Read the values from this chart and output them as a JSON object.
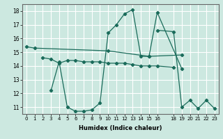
{
  "xlabel": "Humidex (Indice chaleur)",
  "bg_color": "#cce8e0",
  "grid_color": "#ffffff",
  "line_color": "#1a6b5a",
  "series": [
    {
      "x": [
        0,
        1,
        10,
        15,
        19
      ],
      "y": [
        15.4,
        15.3,
        15.1,
        14.7,
        14.8
      ]
    },
    {
      "x": [
        2,
        3,
        4,
        5,
        6,
        7,
        8,
        9,
        10,
        11,
        12,
        13,
        14,
        15,
        16,
        18
      ],
      "y": [
        14.6,
        14.5,
        14.2,
        14.4,
        14.4,
        14.3,
        14.3,
        14.3,
        14.2,
        14.2,
        14.2,
        14.1,
        14.0,
        14.0,
        14.0,
        13.9
      ]
    },
    {
      "x": [
        3,
        4,
        5,
        6,
        7,
        8,
        9,
        10,
        11,
        12,
        13,
        14,
        15,
        16,
        19
      ],
      "y": [
        12.2,
        14.3,
        11.0,
        10.7,
        10.7,
        10.8,
        11.3,
        16.4,
        17.0,
        17.8,
        18.1,
        14.7,
        14.7,
        17.9,
        13.8
      ]
    },
    {
      "x": [
        16,
        18,
        19,
        20,
        21,
        22,
        23
      ],
      "y": [
        16.6,
        16.5,
        11.0,
        11.5,
        10.9,
        11.5,
        10.9
      ]
    }
  ],
  "ylim": [
    10.5,
    18.5
  ],
  "xlim": [
    -0.5,
    23.5
  ],
  "yticks": [
    11,
    12,
    13,
    14,
    15,
    16,
    17,
    18
  ],
  "xticks": [
    0,
    1,
    2,
    3,
    4,
    5,
    6,
    7,
    8,
    9,
    10,
    11,
    12,
    13,
    14,
    15,
    16,
    18,
    19,
    20,
    21,
    22,
    23
  ]
}
